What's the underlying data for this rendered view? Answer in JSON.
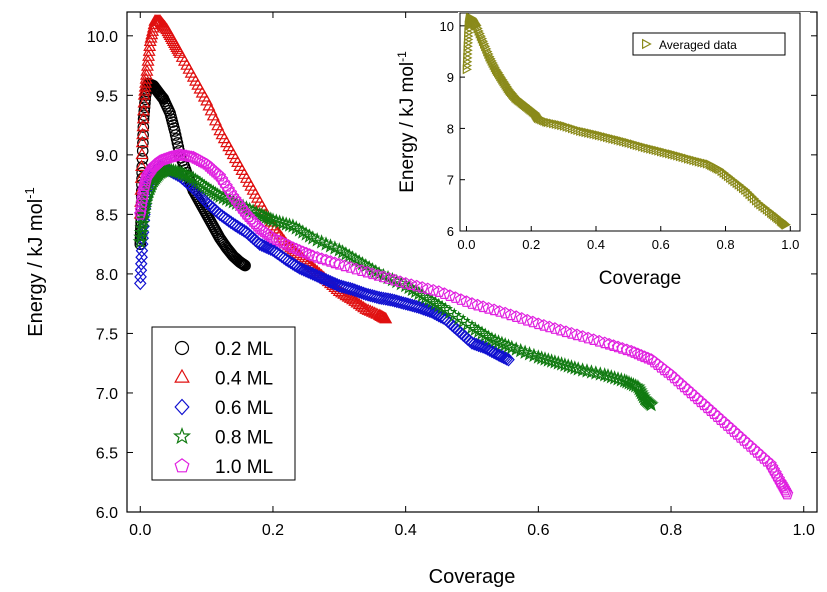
{
  "chart_data": [
    {
      "type": "scatter",
      "xlabel": "Coverage",
      "ylabel": "Energy / kJ mol",
      "ylabel_superscript": "-1",
      "xlim": [
        -0.02,
        1.02
      ],
      "ylim": [
        6.0,
        10.2
      ],
      "xticks": [
        "0.0",
        "0.2",
        "0.4",
        "0.6",
        "0.8",
        "1.0"
      ],
      "yticks": [
        "6.0",
        "6.5",
        "7.0",
        "7.5",
        "8.0",
        "8.5",
        "9.0",
        "9.5",
        "10.0"
      ],
      "legend_position": "bottom-left",
      "series": [
        {
          "name": "0.2 ML",
          "marker": "circle",
          "color": "#000000",
          "points": [
            [
              0.0,
              8.25
            ],
            [
              0.001,
              8.4
            ],
            [
              0.002,
              8.6
            ],
            [
              0.003,
              8.9
            ],
            [
              0.005,
              9.3
            ],
            [
              0.008,
              9.5
            ],
            [
              0.012,
              9.6
            ],
            [
              0.02,
              9.58
            ],
            [
              0.028,
              9.52
            ],
            [
              0.035,
              9.47
            ],
            [
              0.045,
              9.35
            ],
            [
              0.052,
              9.2
            ],
            [
              0.06,
              9.0
            ],
            [
              0.07,
              8.85
            ],
            [
              0.08,
              8.7
            ],
            [
              0.09,
              8.6
            ],
            [
              0.1,
              8.5
            ],
            [
              0.11,
              8.4
            ],
            [
              0.12,
              8.3
            ],
            [
              0.13,
              8.22
            ],
            [
              0.14,
              8.15
            ],
            [
              0.15,
              8.1
            ],
            [
              0.158,
              8.07
            ]
          ]
        },
        {
          "name": "0.4 ML",
          "marker": "triangle",
          "color": "#e01010",
          "points": [
            [
              0.0,
              8.5
            ],
            [
              0.003,
              9.1
            ],
            [
              0.006,
              9.5
            ],
            [
              0.01,
              9.7
            ],
            [
              0.015,
              9.95
            ],
            [
              0.022,
              10.12
            ],
            [
              0.03,
              10.12
            ],
            [
              0.04,
              10.05
            ],
            [
              0.05,
              9.95
            ],
            [
              0.06,
              9.85
            ],
            [
              0.08,
              9.65
            ],
            [
              0.1,
              9.45
            ],
            [
              0.12,
              9.2
            ],
            [
              0.14,
              9.0
            ],
            [
              0.16,
              8.8
            ],
            [
              0.18,
              8.6
            ],
            [
              0.2,
              8.4
            ],
            [
              0.22,
              8.25
            ],
            [
              0.24,
              8.15
            ],
            [
              0.26,
              8.05
            ],
            [
              0.28,
              7.95
            ],
            [
              0.3,
              7.85
            ],
            [
              0.32,
              7.78
            ],
            [
              0.34,
              7.7
            ],
            [
              0.36,
              7.65
            ],
            [
              0.37,
              7.62
            ]
          ]
        },
        {
          "name": "0.6 ML",
          "marker": "diamond",
          "color": "#1010d0",
          "points": [
            [
              0.0,
              7.92
            ],
            [
              0.003,
              8.25
            ],
            [
              0.007,
              8.55
            ],
            [
              0.012,
              8.75
            ],
            [
              0.02,
              8.85
            ],
            [
              0.03,
              8.9
            ],
            [
              0.04,
              8.88
            ],
            [
              0.06,
              8.82
            ],
            [
              0.08,
              8.72
            ],
            [
              0.1,
              8.6
            ],
            [
              0.12,
              8.5
            ],
            [
              0.14,
              8.42
            ],
            [
              0.16,
              8.35
            ],
            [
              0.18,
              8.25
            ],
            [
              0.2,
              8.2
            ],
            [
              0.22,
              8.12
            ],
            [
              0.24,
              8.05
            ],
            [
              0.26,
              8.0
            ],
            [
              0.28,
              7.95
            ],
            [
              0.3,
              7.9
            ],
            [
              0.32,
              7.87
            ],
            [
              0.34,
              7.83
            ],
            [
              0.36,
              7.8
            ],
            [
              0.38,
              7.78
            ],
            [
              0.4,
              7.75
            ],
            [
              0.42,
              7.72
            ],
            [
              0.44,
              7.68
            ],
            [
              0.46,
              7.62
            ],
            [
              0.48,
              7.52
            ],
            [
              0.5,
              7.42
            ],
            [
              0.52,
              7.38
            ],
            [
              0.54,
              7.32
            ],
            [
              0.555,
              7.28
            ]
          ]
        },
        {
          "name": "0.8 ML",
          "marker": "star",
          "color": "#107a10",
          "points": [
            [
              0.0,
              8.27
            ],
            [
              0.005,
              8.5
            ],
            [
              0.01,
              8.65
            ],
            [
              0.02,
              8.78
            ],
            [
              0.03,
              8.85
            ],
            [
              0.04,
              8.88
            ],
            [
              0.06,
              8.85
            ],
            [
              0.08,
              8.8
            ],
            [
              0.1,
              8.72
            ],
            [
              0.12,
              8.65
            ],
            [
              0.15,
              8.58
            ],
            [
              0.18,
              8.5
            ],
            [
              0.2,
              8.45
            ],
            [
              0.23,
              8.4
            ],
            [
              0.26,
              8.3
            ],
            [
              0.3,
              8.2
            ],
            [
              0.33,
              8.1
            ],
            [
              0.36,
              8.0
            ],
            [
              0.4,
              7.9
            ],
            [
              0.43,
              7.8
            ],
            [
              0.46,
              7.7
            ],
            [
              0.5,
              7.55
            ],
            [
              0.53,
              7.45
            ],
            [
              0.56,
              7.38
            ],
            [
              0.6,
              7.3
            ],
            [
              0.63,
              7.25
            ],
            [
              0.66,
              7.2
            ],
            [
              0.7,
              7.15
            ],
            [
              0.73,
              7.1
            ],
            [
              0.75,
              7.05
            ],
            [
              0.76,
              6.95
            ],
            [
              0.77,
              6.9
            ]
          ]
        },
        {
          "name": "1.0 ML",
          "marker": "pentagon",
          "color": "#e020e0",
          "points": [
            [
              0.0,
              8.5
            ],
            [
              0.005,
              8.7
            ],
            [
              0.01,
              8.82
            ],
            [
              0.02,
              8.9
            ],
            [
              0.03,
              8.95
            ],
            [
              0.045,
              8.98
            ],
            [
              0.06,
              9.0
            ],
            [
              0.08,
              8.98
            ],
            [
              0.1,
              8.92
            ],
            [
              0.12,
              8.82
            ],
            [
              0.14,
              8.65
            ],
            [
              0.16,
              8.5
            ],
            [
              0.18,
              8.38
            ],
            [
              0.2,
              8.3
            ],
            [
              0.23,
              8.22
            ],
            [
              0.26,
              8.15
            ],
            [
              0.3,
              8.08
            ],
            [
              0.35,
              8.0
            ],
            [
              0.4,
              7.92
            ],
            [
              0.45,
              7.85
            ],
            [
              0.5,
              7.75
            ],
            [
              0.55,
              7.67
            ],
            [
              0.6,
              7.58
            ],
            [
              0.65,
              7.5
            ],
            [
              0.7,
              7.42
            ],
            [
              0.74,
              7.35
            ],
            [
              0.77,
              7.28
            ],
            [
              0.8,
              7.15
            ],
            [
              0.83,
              7.0
            ],
            [
              0.86,
              6.85
            ],
            [
              0.89,
              6.7
            ],
            [
              0.92,
              6.55
            ],
            [
              0.95,
              6.4
            ],
            [
              0.965,
              6.25
            ],
            [
              0.975,
              6.15
            ]
          ]
        }
      ]
    },
    {
      "type": "scatter",
      "xlabel": "Coverage",
      "ylabel": "Energy / kJ mol",
      "ylabel_superscript": "-1",
      "xlim": [
        -0.02,
        1.03
      ],
      "ylim": [
        6.0,
        10.25
      ],
      "xticks": [
        "0.0",
        "0.2",
        "0.4",
        "0.6",
        "0.8",
        "1.0"
      ],
      "yticks": [
        "6",
        "7",
        "8",
        "9",
        "10"
      ],
      "legend_position": "top-right",
      "series": [
        {
          "name": "Averaged data",
          "marker": "triangle-right",
          "color": "#8a8a1a",
          "points": [
            [
              0.0,
              9.15
            ],
            [
              0.003,
              9.6
            ],
            [
              0.006,
              10.0
            ],
            [
              0.01,
              10.15
            ],
            [
              0.015,
              10.15
            ],
            [
              0.02,
              10.1
            ],
            [
              0.03,
              10.0
            ],
            [
              0.05,
              9.7
            ],
            [
              0.07,
              9.4
            ],
            [
              0.09,
              9.15
            ],
            [
              0.11,
              8.95
            ],
            [
              0.13,
              8.75
            ],
            [
              0.15,
              8.6
            ],
            [
              0.17,
              8.5
            ],
            [
              0.19,
              8.4
            ],
            [
              0.21,
              8.3
            ],
            [
              0.22,
              8.2
            ],
            [
              0.25,
              8.12
            ],
            [
              0.3,
              8.05
            ],
            [
              0.35,
              7.95
            ],
            [
              0.4,
              7.88
            ],
            [
              0.45,
              7.8
            ],
            [
              0.5,
              7.72
            ],
            [
              0.55,
              7.63
            ],
            [
              0.6,
              7.55
            ],
            [
              0.65,
              7.47
            ],
            [
              0.7,
              7.38
            ],
            [
              0.75,
              7.3
            ],
            [
              0.78,
              7.2
            ],
            [
              0.82,
              7.0
            ],
            [
              0.86,
              6.8
            ],
            [
              0.9,
              6.55
            ],
            [
              0.94,
              6.35
            ],
            [
              0.97,
              6.2
            ],
            [
              0.985,
              6.12
            ]
          ]
        }
      ]
    }
  ]
}
